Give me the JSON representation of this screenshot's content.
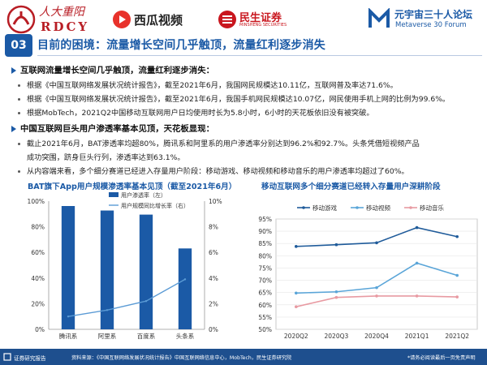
{
  "header": {
    "logo_rdcy_cn": "人大重阳",
    "logo_rdcy_en": "RDCY",
    "logo_xigua": "西瓜视频",
    "logo_minsheng_cn": "民生证券",
    "logo_minsheng_en": "MINSHENG SECURITIES",
    "logo_metaverse_cn": "元宇宙三十人论坛",
    "logo_metaverse_en": "Metaverse 30 Forum"
  },
  "section_number": "03",
  "page_title": "目前的困境：流量增长空间几乎触顶，流量红利逐步消失",
  "block1": {
    "heading": "互联网流量增长空间几乎触顶，流量红利逐步消失：",
    "bullets": [
      "根据《中国互联网络发展状况统计报告》，截至2021年6月，我国网民规模达10.11亿，互联网普及率达71.6%。",
      "根据《中国互联网络发展状况统计报告》，截至2021年6月，我国手机网民规模达10.07亿，网民使用手机上网的比例为99.6%。",
      "根据MobTech，2021Q2中国移动互联网用户日均使用时长为5.8小时，6小时的天花板依旧没有被突破。"
    ]
  },
  "block2": {
    "heading": "中国互联网巨头用户渗透率基本见顶，天花板显现：",
    "bullets": [
      "截止2021年6月，BAT渗透率均超80%，腾讯系和阿里系的用户渗透率分别达到96.2%和92.7%。头条凭借短视频产品",
      "从内容端来看，多个细分赛道已经进入存量用户阶段：移动游戏、移动视频和移动音乐的用户渗透率均超过了60%。"
    ],
    "bullet1_cont": "成功突围，跻身巨头行列，渗透率达到63.1%。"
  },
  "chart_left_title": "BAT旗下App用户规模渗透率基本见顶（截至2021年6月）",
  "chart_right_title": "移动互联网多个细分赛道已经转入存量用户深耕阶段",
  "chart_data": [
    {
      "type": "bar",
      "title": "BAT旗下App用户规模渗透率基本见顶（截至2021年6月）",
      "categories": [
        "腾讯系",
        "阿里系",
        "百度系",
        "头条系"
      ],
      "series": [
        {
          "name": "用户渗透率（左）",
          "type": "bar",
          "axis": "left",
          "color": "#1b5aa6",
          "values": [
            96.2,
            92.7,
            89.5,
            63.1
          ]
        },
        {
          "name": "用户规模同比增长率（右）",
          "type": "line",
          "axis": "right",
          "color": "#5b9bd5",
          "values": [
            1.0,
            1.5,
            2.2,
            3.9
          ]
        }
      ],
      "left_axis": {
        "ticks": [
          "0%",
          "20%",
          "40%",
          "60%",
          "80%",
          "100%"
        ],
        "ylim": [
          0,
          100
        ]
      },
      "right_axis": {
        "ticks": [
          "0%",
          "2%",
          "4%",
          "6%",
          "8%",
          "10%"
        ],
        "ylim": [
          0,
          10
        ]
      },
      "legend": "top-center"
    },
    {
      "type": "line",
      "title": "移动互联网多个细分赛道已经转入存量用户深耕阶段",
      "categories": [
        "2020Q2",
        "2020Q3",
        "2020Q4",
        "2021Q1",
        "2021Q2"
      ],
      "series": [
        {
          "name": "移动游戏",
          "color": "#1f5b9a",
          "values": [
            83.8,
            84.5,
            85.3,
            91.5,
            87.8
          ]
        },
        {
          "name": "移动视频",
          "color": "#5aa5d8",
          "values": [
            64.8,
            65.3,
            67.0,
            77.0,
            72.0
          ]
        },
        {
          "name": "移动音乐",
          "color": "#e89aa2",
          "values": [
            59.2,
            63.0,
            63.6,
            63.6,
            63.2
          ]
        }
      ],
      "y_axis": {
        "ticks": [
          "50%",
          "55%",
          "60%",
          "65%",
          "70%",
          "75%",
          "80%",
          "85%",
          "90%",
          "95%"
        ],
        "ylim": [
          50,
          95
        ]
      },
      "legend": "top"
    }
  ],
  "footer": {
    "brand": "证券研究报告",
    "source": "资料来源：《中国互联网络发展状况统计报告》中国互联网络信息中心，MobTech，民生证券研究院",
    "disclaimer": "*请务必阅读最后一页免责声明"
  }
}
